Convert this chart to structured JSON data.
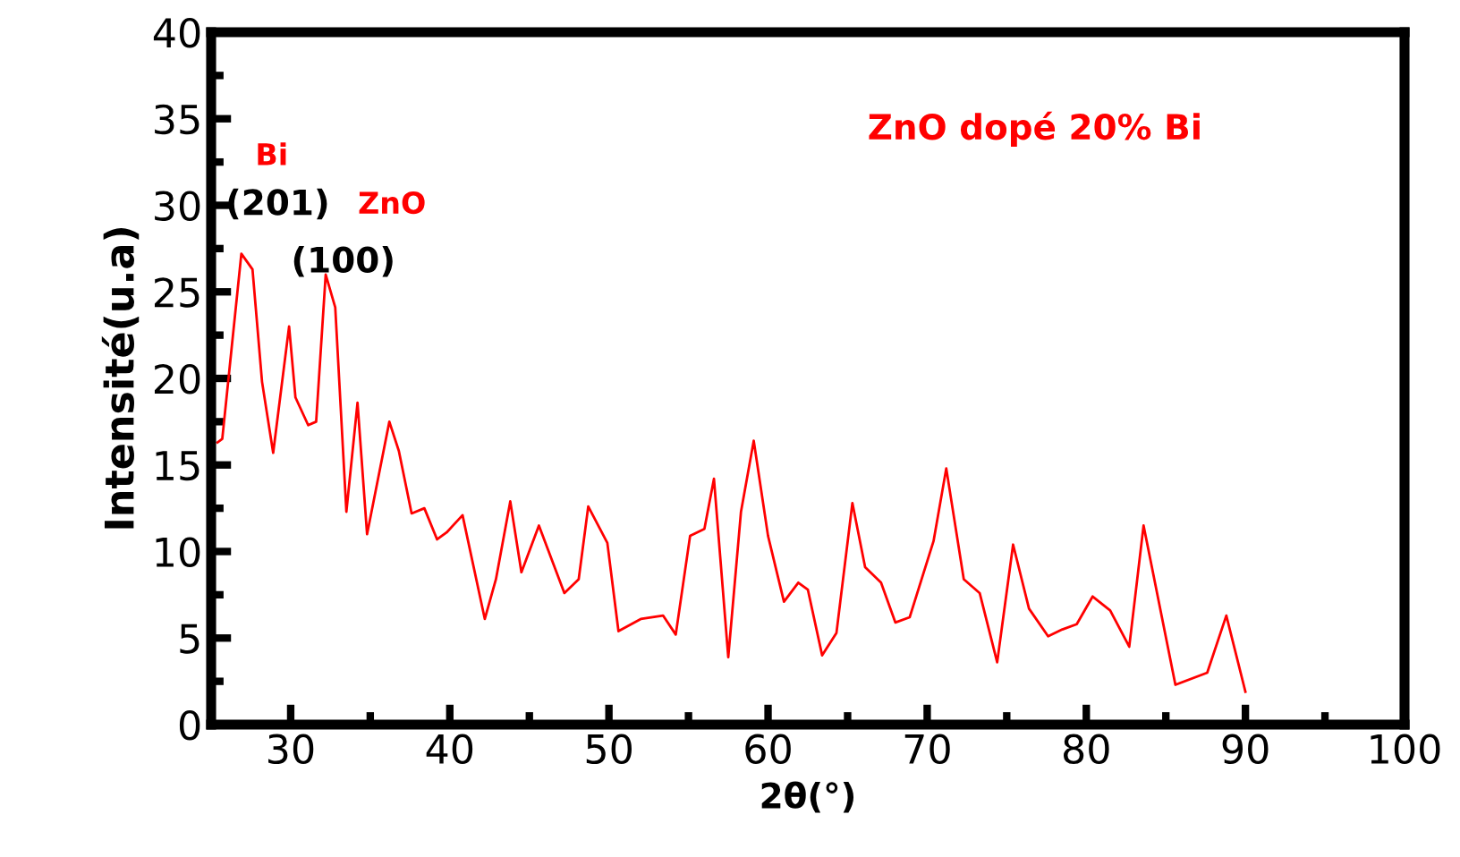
{
  "chart_data": {
    "type": "line",
    "xlabel": "2θ(°)",
    "ylabel": "Intensité(u.a)",
    "x": [
      25.4,
      25.7,
      26.9,
      27.6,
      28.2,
      28.9,
      29.9,
      30.3,
      31.1,
      31.6,
      32.2,
      32.8,
      33.5,
      34.2,
      34.8,
      36.2,
      36.8,
      37.6,
      38.4,
      39.2,
      39.8,
      40.8,
      42.2,
      42.9,
      43.8,
      44.5,
      45.6,
      47.2,
      48.1,
      48.7,
      49.9,
      50.6,
      52.0,
      53.4,
      54.2,
      55.1,
      56.0,
      56.6,
      57.5,
      58.3,
      59.1,
      60.0,
      61.0,
      61.9,
      62.5,
      63.4,
      64.3,
      65.3,
      66.1,
      67.1,
      68.0,
      68.9,
      70.4,
      71.2,
      72.3,
      73.3,
      74.4,
      75.4,
      76.4,
      77.6,
      78.5,
      79.4,
      80.4,
      81.5,
      82.7,
      83.6,
      85.6,
      87.6,
      88.8,
      90.0
    ],
    "series": [
      {
        "color": "#ff0000",
        "values": [
          16.3,
          16.5,
          27.2,
          26.3,
          19.8,
          15.7,
          23.0,
          18.9,
          17.3,
          17.5,
          26.0,
          24.1,
          12.3,
          18.6,
          11.0,
          17.5,
          15.8,
          12.2,
          12.5,
          10.7,
          11.1,
          12.1,
          6.1,
          8.4,
          12.9,
          8.8,
          11.5,
          7.6,
          8.4,
          12.6,
          10.5,
          5.4,
          6.1,
          6.3,
          5.2,
          10.9,
          11.3,
          14.2,
          3.9,
          12.3,
          16.4,
          10.9,
          7.1,
          8.2,
          7.8,
          4.0,
          5.3,
          12.8,
          9.1,
          8.2,
          5.9,
          6.2,
          10.6,
          14.8,
          8.4,
          7.6,
          3.6,
          10.4,
          6.7,
          5.1,
          5.5,
          5.8,
          7.4,
          6.6,
          4.5,
          11.5,
          2.3,
          3.0,
          6.3,
          1.9
        ]
      }
    ],
    "xlim": [
      25,
      100
    ],
    "xticks": [
      30,
      40,
      50,
      60,
      70,
      80,
      90,
      100
    ],
    "ylim": [
      0,
      40
    ],
    "yticks": [
      0,
      5,
      10,
      15,
      20,
      25,
      30,
      35,
      40
    ],
    "grid": false,
    "legend": false,
    "marker": "none",
    "line_style": "solid",
    "annotations": [
      "Bi",
      "(201)",
      "ZnO",
      "(100)",
      "ZnO dopé 20% Bi"
    ]
  }
}
